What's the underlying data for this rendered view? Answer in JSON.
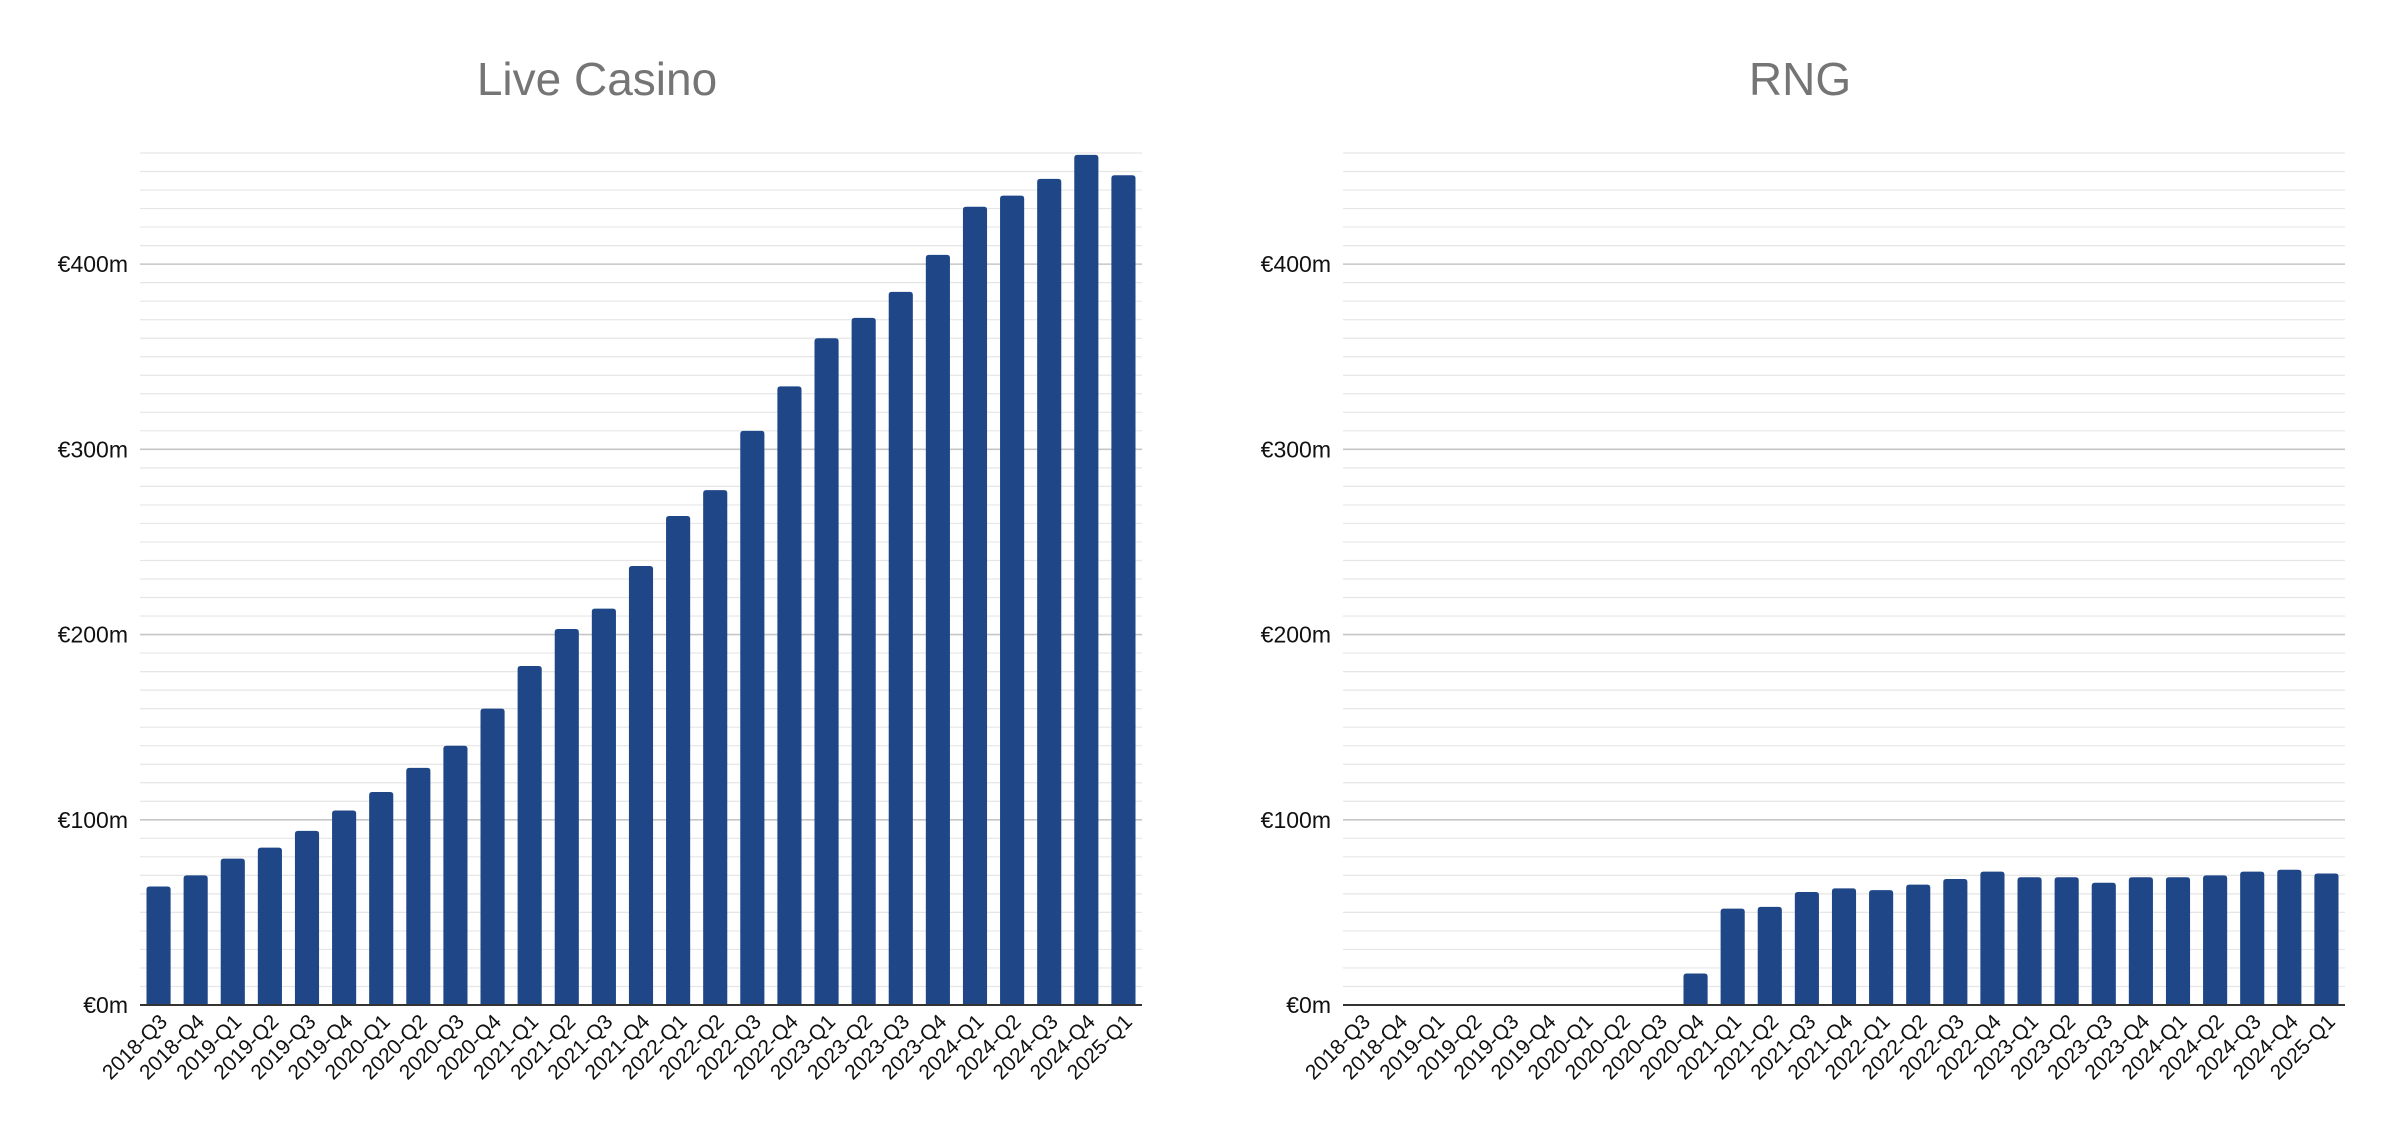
{
  "chart_data": [
    {
      "type": "bar",
      "title": "Live Casino",
      "xlabel": "",
      "ylabel": "",
      "ylim": [
        0,
        460
      ],
      "yticks": [
        0,
        100,
        200,
        300,
        400
      ],
      "ytick_labels": [
        "€0m",
        "€100m",
        "€200m",
        "€300m",
        "€400m"
      ],
      "grid": true,
      "color": "#1f4788",
      "categories": [
        "2018-Q3",
        "2018-Q4",
        "2019-Q1",
        "2019-Q2",
        "2019-Q3",
        "2019-Q4",
        "2020-Q1",
        "2020-Q2",
        "2020-Q3",
        "2020-Q4",
        "2021-Q1",
        "2021-Q2",
        "2021-Q3",
        "2021-Q4",
        "2022-Q1",
        "2022-Q2",
        "2022-Q3",
        "2022-Q4",
        "2023-Q1",
        "2023-Q2",
        "2023-Q3",
        "2023-Q4",
        "2024-Q1",
        "2024-Q2",
        "2024-Q3",
        "2024-Q4",
        "2025-Q1"
      ],
      "values": [
        64,
        70,
        79,
        85,
        94,
        105,
        115,
        128,
        140,
        160,
        183,
        203,
        214,
        237,
        264,
        278,
        310,
        334,
        360,
        371,
        385,
        405,
        431,
        437,
        446,
        459,
        448
      ]
    },
    {
      "type": "bar",
      "title": "RNG",
      "xlabel": "",
      "ylabel": "",
      "ylim": [
        0,
        460
      ],
      "yticks": [
        0,
        100,
        200,
        300,
        400
      ],
      "ytick_labels": [
        "€0m",
        "€100m",
        "€200m",
        "€300m",
        "€400m"
      ],
      "grid": true,
      "color": "#1f4788",
      "categories": [
        "2018-Q3",
        "2018-Q4",
        "2019-Q1",
        "2019-Q2",
        "2019-Q3",
        "2019-Q4",
        "2020-Q1",
        "2020-Q2",
        "2020-Q3",
        "2020-Q4",
        "2021-Q1",
        "2021-Q2",
        "2021-Q3",
        "2021-Q4",
        "2022-Q1",
        "2022-Q2",
        "2022-Q3",
        "2022-Q4",
        "2023-Q1",
        "2023-Q2",
        "2023-Q3",
        "2023-Q4",
        "2024-Q1",
        "2024-Q2",
        "2024-Q3",
        "2024-Q4",
        "2025-Q1"
      ],
      "values": [
        0,
        0,
        0,
        0,
        0,
        0,
        0,
        0,
        0,
        17,
        52,
        53,
        61,
        63,
        62,
        65,
        68,
        72,
        69,
        69,
        66,
        69,
        69,
        70,
        72,
        73,
        71
      ]
    }
  ]
}
